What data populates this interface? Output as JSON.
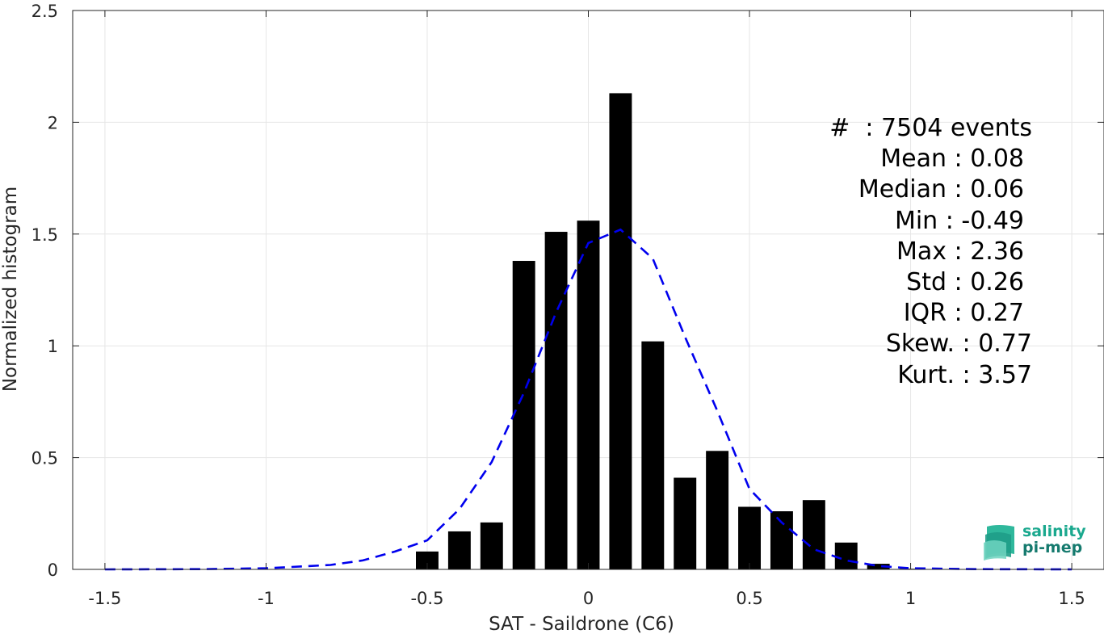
{
  "chart_data": {
    "type": "bar",
    "xlabel": "SAT - Saildrone (C6)",
    "ylabel": "Normalized histogram",
    "xlim": [
      -1.6,
      1.6
    ],
    "ylim": [
      0,
      2.5
    ],
    "xticks": [
      "-1.5",
      "-1",
      "-0.5",
      "0",
      "0.5",
      "1",
      "1.5"
    ],
    "yticks": [
      "0",
      "0.5",
      "1",
      "1.5",
      "2",
      "2.5"
    ],
    "grid": true,
    "bar_width": 0.07,
    "bars": {
      "x": [
        -0.5,
        -0.4,
        -0.3,
        -0.2,
        -0.1,
        0.0,
        0.1,
        0.2,
        0.3,
        0.4,
        0.5,
        0.6,
        0.7,
        0.8,
        0.9,
        1.0
      ],
      "values": [
        0.08,
        0.17,
        0.21,
        1.38,
        1.51,
        1.56,
        2.13,
        1.02,
        0.41,
        0.53,
        0.28,
        0.26,
        0.31,
        0.12,
        0.025,
        0.003
      ],
      "color": "#000000"
    },
    "fit_curve": {
      "style": "dashed",
      "color": "#0000ee",
      "x": [
        -1.5,
        -1.2,
        -1.0,
        -0.8,
        -0.7,
        -0.6,
        -0.5,
        -0.4,
        -0.3,
        -0.2,
        -0.1,
        0.0,
        0.1,
        0.2,
        0.3,
        0.4,
        0.5,
        0.6,
        0.7,
        0.8,
        0.9,
        1.0,
        1.2,
        1.5
      ],
      "y": [
        0.0,
        0.001,
        0.005,
        0.02,
        0.04,
        0.08,
        0.13,
        0.27,
        0.48,
        0.79,
        1.15,
        1.46,
        1.52,
        1.39,
        1.04,
        0.71,
        0.36,
        0.21,
        0.09,
        0.04,
        0.015,
        0.005,
        0.001,
        0.0
      ]
    },
    "annotations": [
      "#  : 7504 events",
      "Mean : 0.08",
      "Median : 0.06",
      "Min : -0.49",
      "Max : 2.36",
      "Std : 0.26",
      "IQR : 0.27",
      "Skew. : 0.77",
      "Kurt. : 3.57"
    ]
  },
  "logo": {
    "line1": "salinity",
    "line2": "pi-mep",
    "color_top": "#1aa88e",
    "color_bottom": "#157a6e"
  }
}
